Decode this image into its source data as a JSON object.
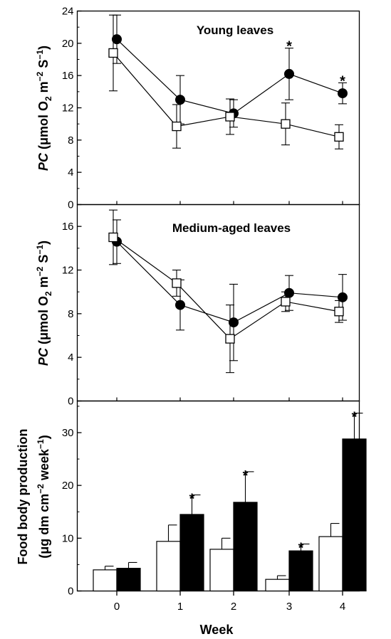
{
  "chart_data": [
    {
      "type": "line",
      "title": "Young leaves",
      "ylabel": "PC (μmol O2 m−2 S−1)",
      "ylim": [
        0,
        24
      ],
      "yticks": [
        "0",
        "4",
        "8",
        "12",
        "16",
        "20",
        "24"
      ],
      "x": [
        0,
        1,
        2,
        3,
        4
      ],
      "series": [
        {
          "marker": "filled-circle",
          "values": [
            20.5,
            13.0,
            11.3,
            16.2,
            13.8
          ],
          "errors": [
            3.0,
            3.0,
            1.7,
            3.2,
            1.3
          ]
        },
        {
          "marker": "open-square",
          "values": [
            18.8,
            9.7,
            10.9,
            10.0,
            8.4
          ],
          "errors": [
            4.7,
            2.7,
            2.2,
            2.6,
            1.5
          ]
        }
      ],
      "significance_markers": [
        {
          "x": 3,
          "label": "*"
        },
        {
          "x": 4,
          "label": "*"
        }
      ]
    },
    {
      "type": "line",
      "title": "Medium-aged leaves",
      "ylabel": "PC (μmol O2 m−2 S−1)",
      "ylim": [
        0,
        18
      ],
      "yticks": [
        "0",
        "4",
        "8",
        "12",
        "16"
      ],
      "x": [
        0,
        1,
        2,
        3,
        4
      ],
      "series": [
        {
          "marker": "filled-circle",
          "values": [
            14.6,
            8.8,
            7.2,
            9.9,
            9.5
          ],
          "errors": [
            2.0,
            2.3,
            3.5,
            1.6,
            2.1
          ]
        },
        {
          "marker": "open-square",
          "values": [
            15.0,
            10.8,
            5.7,
            9.1,
            8.2
          ],
          "errors": [
            2.5,
            1.2,
            3.1,
            0.9,
            1.0
          ]
        }
      ],
      "significance_markers": []
    },
    {
      "type": "bar",
      "ylabel": "Food body production (μg dm cm−2 week−1)",
      "xlabel": "Week",
      "categories": [
        "0",
        "1",
        "2",
        "3",
        "4"
      ],
      "ylim": [
        0,
        36
      ],
      "yticks": [
        "0",
        "10",
        "20",
        "30"
      ],
      "series": [
        {
          "fill": "white",
          "values": [
            4.0,
            9.4,
            7.9,
            2.2,
            10.3
          ],
          "errors": [
            0.7,
            3.1,
            2.1,
            0.7,
            2.5
          ]
        },
        {
          "fill": "black",
          "values": [
            4.3,
            14.5,
            16.8,
            7.6,
            28.8
          ],
          "errors": [
            1.1,
            3.7,
            5.8,
            1.3,
            4.9
          ]
        }
      ],
      "significance_markers": [
        {
          "x": 1,
          "label": "*"
        },
        {
          "x": 2,
          "label": "*"
        },
        {
          "x": 3,
          "label": "*"
        },
        {
          "x": 4,
          "label": "*"
        }
      ]
    }
  ],
  "colors": {
    "axis": "#000000",
    "open_fill": "#ffffff",
    "filled": "#000000"
  }
}
